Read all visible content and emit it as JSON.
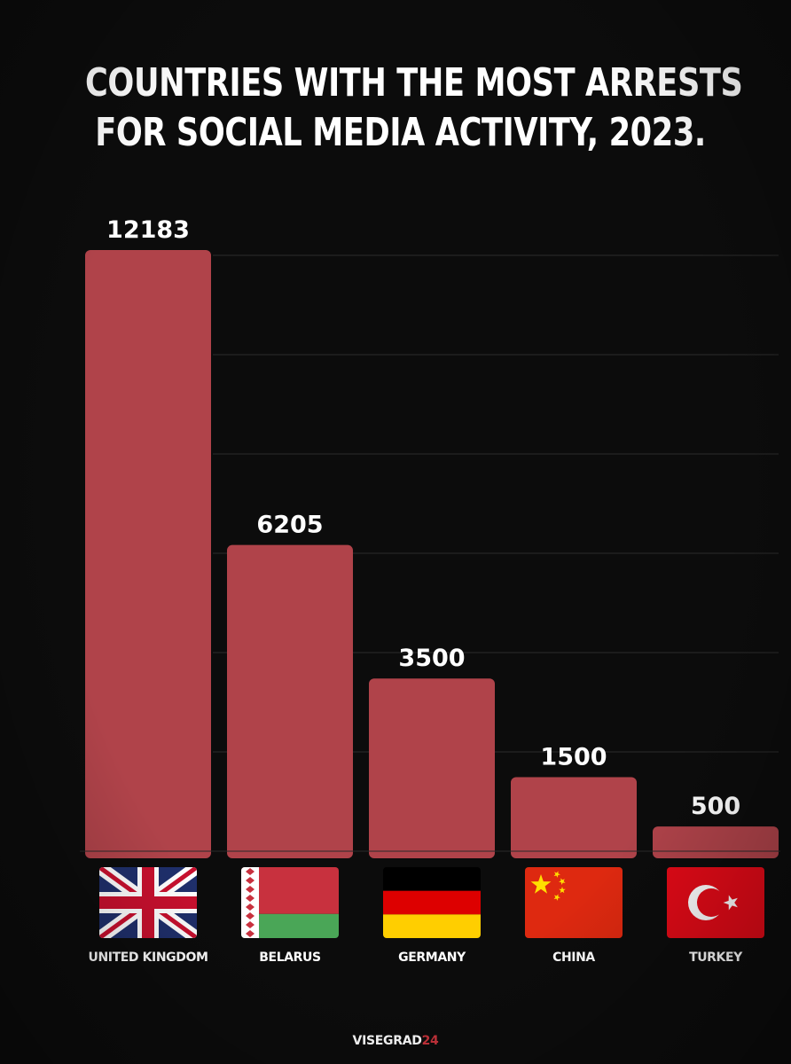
{
  "header": {
    "title_line1": "COUNTRIES WITH THE MOST ARRESTS",
    "title_line2": "FOR SOCIAL MEDIA ACTIVITY, 2023."
  },
  "footer": {
    "brand_main": "VISEGRAD",
    "brand_suffix": "24"
  },
  "colors": {
    "background": "#0c0c0c",
    "bar": "#b0434a",
    "text": "#ffffff",
    "brand_accent": "#c8333b"
  },
  "chart_data": {
    "type": "bar",
    "title": "COUNTRIES WITH THE MOST ARRESTS FOR SOCIAL MEDIA ACTIVITY, 2023.",
    "categories": [
      "UNITED KINGDOM",
      "BELARUS",
      "GERMANY",
      "CHINA",
      "TURKEY"
    ],
    "values": [
      12183,
      6205,
      3500,
      1500,
      500
    ],
    "data_labels": [
      "12183",
      "6205",
      "3500",
      "1500",
      "500"
    ],
    "flags": [
      "united-kingdom-flag-icon",
      "belarus-flag-icon",
      "germany-flag-icon",
      "china-flag-icon",
      "turkey-flag-icon"
    ],
    "xlabel": "",
    "ylabel": "",
    "ylim": [
      0,
      12183
    ],
    "grid": true,
    "legend": "none"
  }
}
